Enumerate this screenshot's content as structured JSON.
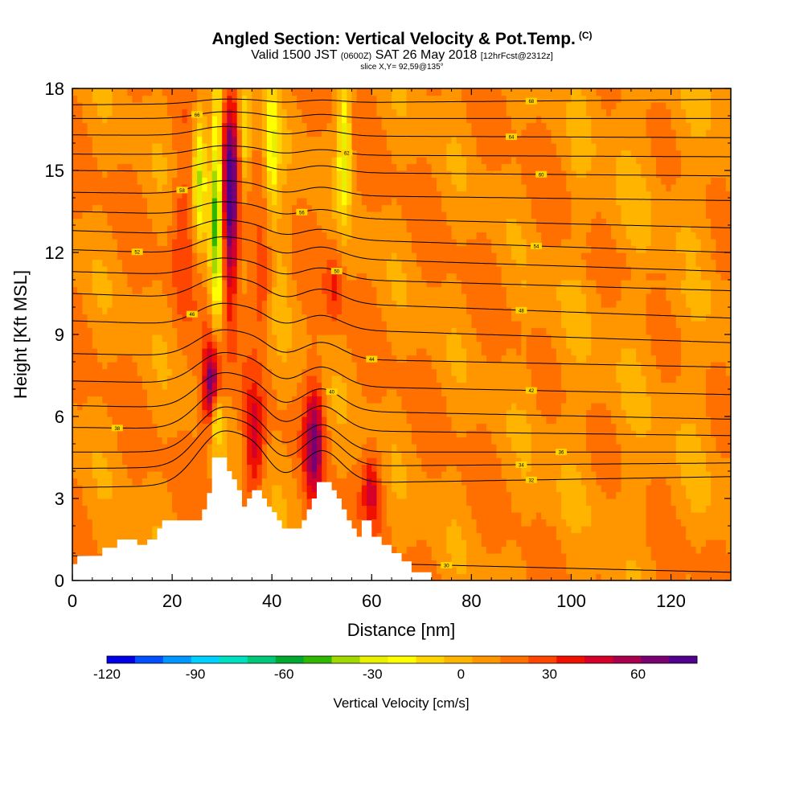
{
  "chart_data": {
    "type": "heatmap",
    "title": "Angled Section: Vertical Velocity & Pot.Temp.",
    "title_units": "(C)",
    "subtitle": {
      "valid": "Valid 1500 JST",
      "utc": "(0600Z)",
      "date": "SAT 26 May 2018",
      "forecast": "[12hrFcst@2312z]"
    },
    "slice_label": "slice X,Y= 92,59@135°",
    "xlabel": "Distance [nm]",
    "ylabel": "Height [Kft MSL]",
    "xlim": [
      0,
      132
    ],
    "ylim": [
      0,
      18
    ],
    "xticks": [
      0,
      20,
      40,
      60,
      80,
      100,
      120
    ],
    "yticks": [
      0,
      3,
      6,
      9,
      12,
      15,
      18
    ],
    "colorbar": {
      "label": "Vertical Velocity [cm/s]",
      "ticks": [
        -120,
        -90,
        -60,
        -30,
        0,
        30,
        60
      ],
      "range": [
        -120,
        80
      ],
      "colors": [
        "#0000e6",
        "#0050ff",
        "#0096ff",
        "#00d0ff",
        "#00e0c0",
        "#00c878",
        "#00a830",
        "#30b800",
        "#a0d800",
        "#e8f000",
        "#ffff00",
        "#ffd500",
        "#ffb400",
        "#ff9600",
        "#ff7000",
        "#ff4600",
        "#f01000",
        "#d4002a",
        "#a8004a",
        "#780070",
        "#50008c"
      ]
    },
    "updrafts": [
      {
        "x": 31.5,
        "y_low": 10.5,
        "y_high": 17.5,
        "peak": 80
      },
      {
        "x": 28,
        "y_low": 5.5,
        "y_high": 8.6,
        "peak": 75
      },
      {
        "x": 36.5,
        "y_low": 3.3,
        "y_high": 6.8,
        "peak": 45
      },
      {
        "x": 48.5,
        "y_low": 3.2,
        "y_high": 7,
        "peak": 60
      },
      {
        "x": 60,
        "y_low": 2.2,
        "y_high": 4.5,
        "peak": 40
      },
      {
        "x": 38,
        "y_low": 9,
        "y_high": 12.5,
        "peak": 30
      },
      {
        "x": 52.5,
        "y_low": 9.5,
        "y_high": 12.2,
        "peak": 30
      }
    ],
    "downdrafts": [
      {
        "x": 29,
        "y_low": 9.5,
        "y_high": 17.5,
        "min": -55
      },
      {
        "x": 25.5,
        "y_low": 13,
        "y_high": 17,
        "min": -40
      },
      {
        "x": 28.8,
        "y_low": 5,
        "y_high": 6.8,
        "min": -35
      },
      {
        "x": 40,
        "y_low": 13.5,
        "y_high": 18,
        "min": -25
      },
      {
        "x": 54.5,
        "y_low": 13.8,
        "y_high": 18,
        "min": -35
      },
      {
        "x": 34.5,
        "y_low": 14,
        "y_high": 18,
        "min": -20
      }
    ],
    "isentropes": [
      {
        "label": "30",
        "y0": 0.9,
        "y1": 0.3,
        "pert": 1.0,
        "lx": 75
      },
      {
        "label": "32",
        "y0": 3.4,
        "y1": 3.8,
        "pert": 1.2,
        "lx": 92
      },
      {
        "label": "34",
        "y0": 4.1,
        "y1": 4.3,
        "pert": 1.1,
        "lx": 90
      },
      {
        "label": "36",
        "y0": 4.7,
        "y1": 4.7,
        "pert": 1.0,
        "lx": 98
      },
      {
        "label": "38",
        "y0": 5.6,
        "y1": 5.3,
        "pert": 0.9,
        "lx": 9
      },
      {
        "label": "40",
        "y0": 6.4,
        "y1": 5.9,
        "pert": 0.8,
        "lx": 52
      },
      {
        "label": "42",
        "y0": 7.3,
        "y1": 6.8,
        "pert": 0.7,
        "lx": 92
      },
      {
        "label": "44",
        "y0": 8.3,
        "y1": 7.8,
        "pert": 0.6,
        "lx": 60
      },
      {
        "label": "46",
        "y0": 9.5,
        "y1": 8.7,
        "pert": 0.5,
        "lx": 24
      },
      {
        "label": "48",
        "y0": 10.5,
        "y1": 9.6,
        "pert": 0.5,
        "lx": 90
      },
      {
        "label": "50",
        "y0": 11.3,
        "y1": 10.6,
        "pert": 0.4,
        "lx": 53
      },
      {
        "label": "52",
        "y0": 12.1,
        "y1": 11.3,
        "pert": 0.4,
        "lx": 13
      },
      {
        "label": "54",
        "y0": 12.8,
        "y1": 12.0,
        "pert": 0.35,
        "lx": 93
      },
      {
        "label": "56",
        "y0": 13.5,
        "y1": 12.9,
        "pert": 0.3,
        "lx": 46
      },
      {
        "label": "58",
        "y0": 14.2,
        "y1": 13.9,
        "pert": 0.3,
        "lx": 22
      },
      {
        "label": "60",
        "y0": 15.0,
        "y1": 14.8,
        "pert": 0.25,
        "lx": 94
      },
      {
        "label": "62",
        "y0": 15.6,
        "y1": 15.5,
        "pert": 0.2,
        "lx": 55
      },
      {
        "label": "64",
        "y0": 16.3,
        "y1": 16.2,
        "pert": 0.2,
        "lx": 88
      },
      {
        "label": "66",
        "y0": 16.9,
        "y1": 16.9,
        "pert": 0.15,
        "lx": 25
      },
      {
        "label": "68",
        "y0": 17.4,
        "y1": 17.6,
        "pert": 0.1,
        "lx": 92
      }
    ],
    "terrain": [
      [
        0,
        0.6
      ],
      [
        1,
        0.6
      ],
      [
        1,
        0.9
      ],
      [
        6,
        0.9
      ],
      [
        6,
        1.2
      ],
      [
        9,
        1.2
      ],
      [
        9,
        1.5
      ],
      [
        13,
        1.5
      ],
      [
        13,
        1.3
      ],
      [
        15,
        1.3
      ],
      [
        15,
        1.5
      ],
      [
        17,
        1.5
      ],
      [
        17,
        1.9
      ],
      [
        18,
        1.9
      ],
      [
        18,
        2.2
      ],
      [
        26,
        2.2
      ],
      [
        26,
        2.6
      ],
      [
        27,
        2.6
      ],
      [
        27,
        3.2
      ],
      [
        28,
        3.2
      ],
      [
        28,
        4.5
      ],
      [
        31,
        4.5
      ],
      [
        31,
        4.0
      ],
      [
        32,
        4.0
      ],
      [
        32,
        3.7
      ],
      [
        33,
        3.7
      ],
      [
        33,
        3.3
      ],
      [
        34,
        3.3
      ],
      [
        34,
        2.7
      ],
      [
        35,
        2.7
      ],
      [
        35,
        3.0
      ],
      [
        36,
        3.0
      ],
      [
        36,
        3.3
      ],
      [
        38,
        3.3
      ],
      [
        38,
        3.0
      ],
      [
        39,
        3.0
      ],
      [
        39,
        2.7
      ],
      [
        40,
        2.7
      ],
      [
        40,
        2.5
      ],
      [
        41,
        2.5
      ],
      [
        41,
        2.2
      ],
      [
        42,
        2.2
      ],
      [
        42,
        1.9
      ],
      [
        46,
        1.9
      ],
      [
        46,
        2.2
      ],
      [
        47,
        2.2
      ],
      [
        47,
        2.6
      ],
      [
        48,
        2.6
      ],
      [
        48,
        3.0
      ],
      [
        49,
        3.0
      ],
      [
        49,
        3.6
      ],
      [
        52,
        3.6
      ],
      [
        52,
        3.3
      ],
      [
        53,
        3.3
      ],
      [
        53,
        3.0
      ],
      [
        54,
        3.0
      ],
      [
        54,
        2.6
      ],
      [
        55,
        2.6
      ],
      [
        55,
        2.2
      ],
      [
        56,
        2.2
      ],
      [
        56,
        1.9
      ],
      [
        57,
        1.9
      ],
      [
        57,
        1.6
      ],
      [
        58,
        1.6
      ],
      [
        58,
        2.2
      ],
      [
        60,
        2.2
      ],
      [
        60,
        1.6
      ],
      [
        62,
        1.6
      ],
      [
        62,
        1.3
      ],
      [
        64,
        1.3
      ],
      [
        64,
        1.0
      ],
      [
        66,
        1.0
      ],
      [
        66,
        0.7
      ],
      [
        68,
        0.7
      ],
      [
        68,
        0.3
      ],
      [
        72,
        0.3
      ],
      [
        72,
        0
      ],
      [
        0,
        0
      ]
    ]
  }
}
